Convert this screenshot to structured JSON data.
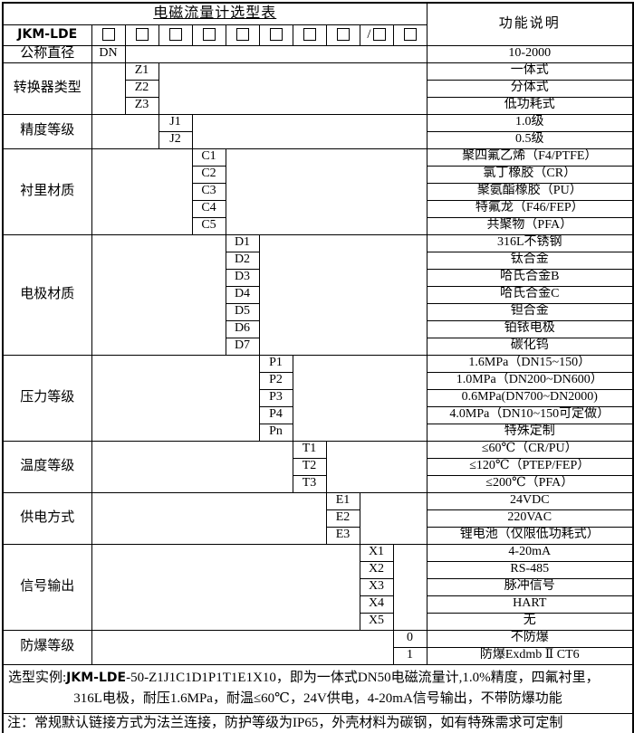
{
  "colors": {
    "border": "#000000",
    "text": "#000000",
    "background": "#ffffff"
  },
  "header": {
    "title": "电磁流量计选型表",
    "function_col_header": "功能说明",
    "model_prefix": "JKM-LDE",
    "option_slots": [
      {
        "prefix": ""
      },
      {
        "prefix": ""
      },
      {
        "prefix": ""
      },
      {
        "prefix": ""
      },
      {
        "prefix": ""
      },
      {
        "prefix": ""
      },
      {
        "prefix": ""
      },
      {
        "prefix": ""
      },
      {
        "prefix": "/"
      },
      {
        "prefix": ""
      }
    ]
  },
  "sections": [
    {
      "category": "公称直径",
      "col": 0,
      "rows": [
        {
          "code": "DN",
          "desc": "10-2000"
        }
      ]
    },
    {
      "category": "转换器类型",
      "col": 1,
      "rows": [
        {
          "code": "Z1",
          "desc": "一体式"
        },
        {
          "code": "Z2",
          "desc": "分体式"
        },
        {
          "code": "Z3",
          "desc": "低功耗式"
        }
      ]
    },
    {
      "category": "精度等级",
      "col": 2,
      "rows": [
        {
          "code": "J1",
          "desc": "1.0级"
        },
        {
          "code": "J2",
          "desc": "0.5级"
        }
      ]
    },
    {
      "category": "衬里材质",
      "col": 3,
      "rows": [
        {
          "code": "C1",
          "desc": "聚四氟乙烯（F4/PTFE）"
        },
        {
          "code": "C2",
          "desc": "氯丁橡胶（CR）"
        },
        {
          "code": "C3",
          "desc": "聚氨酯橡胶（PU）"
        },
        {
          "code": "C4",
          "desc": "特氟龙（F46/FEP）"
        },
        {
          "code": "C5",
          "desc": "共聚物（PFA）"
        }
      ]
    },
    {
      "category": "电极材质",
      "col": 4,
      "rows": [
        {
          "code": "D1",
          "desc": "316L不锈钢"
        },
        {
          "code": "D2",
          "desc": "钛合金"
        },
        {
          "code": "D3",
          "desc": "哈氏合金B"
        },
        {
          "code": "D4",
          "desc": "哈氏合金C"
        },
        {
          "code": "D5",
          "desc": "钽合金"
        },
        {
          "code": "D6",
          "desc": "铂铱电极"
        },
        {
          "code": "D7",
          "desc": "碳化钨"
        }
      ]
    },
    {
      "category": "压力等级",
      "col": 5,
      "rows": [
        {
          "code": "P1",
          "desc": "1.6MPa（DN15~150）"
        },
        {
          "code": "P2",
          "desc": "1.0MPa（DN200~DN600）"
        },
        {
          "code": "P3",
          "desc": "0.6MPa(DN700~DN2000)"
        },
        {
          "code": "P4",
          "desc": "4.0MPa（DN10~150可定做）"
        },
        {
          "code": "Pn",
          "desc": "特殊定制"
        }
      ]
    },
    {
      "category": "温度等级",
      "col": 6,
      "rows": [
        {
          "code": "T1",
          "desc": "≤60℃（CR/PU）"
        },
        {
          "code": "T2",
          "desc": "≤120℃（PTEP/FEP）"
        },
        {
          "code": "T3",
          "desc": "≤200℃（PFA）"
        }
      ]
    },
    {
      "category": "供电方式",
      "col": 7,
      "rows": [
        {
          "code": "E1",
          "desc": "24VDC"
        },
        {
          "code": "E2",
          "desc": "220VAC"
        },
        {
          "code": "E3",
          "desc": "锂电池（仅限低功耗式）"
        }
      ]
    },
    {
      "category": "信号输出",
      "col": 8,
      "rows": [
        {
          "code": "X1",
          "desc": "4-20mA"
        },
        {
          "code": "X2",
          "desc": "RS-485"
        },
        {
          "code": "X3",
          "desc": "脉冲信号"
        },
        {
          "code": "X4",
          "desc": "HART"
        },
        {
          "code": "X5",
          "desc": "无"
        }
      ]
    },
    {
      "category": "防爆等级",
      "col": 9,
      "rows": [
        {
          "code": "0",
          "desc": "不防爆"
        },
        {
          "code": "1",
          "desc": "防爆Exdmb Ⅱ CT6"
        }
      ]
    }
  ],
  "footer": {
    "example_label": "选型实例:",
    "example_model": "JKM-LDE",
    "example_line1_rest": "-50-Z1J1C1D1P1T1E1X10，即为一体式DN50电磁流量计,1.0%精度，四氟衬里，",
    "example_line2": "316L电极，耐压1.6MPa，耐温≤60℃，24V供电，4-20mA信号输出，不带防爆功能",
    "note": "注：常规默认链接方式为法兰连接，防护等级为IP65，外壳材料为碳钢，如有特殊需求可定制"
  }
}
